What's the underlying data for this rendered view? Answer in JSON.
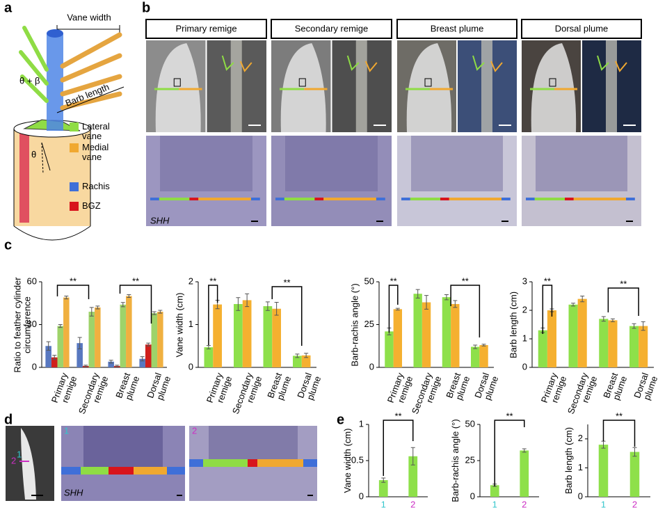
{
  "panel_labels": [
    "a",
    "b",
    "c",
    "d",
    "e"
  ],
  "schematic": {
    "vane_width": "Vane width",
    "angle_sum": "θ + β",
    "barb_length": "Barb length",
    "angle": "θ",
    "legend": [
      {
        "name": "Lateral vane",
        "color": "#8fdc45"
      },
      {
        "name": "Medial vane",
        "color": "#f0a830"
      },
      {
        "name": "Rachis",
        "color": "#3f6fd8"
      },
      {
        "name": "BGZ",
        "color": "#d8141c"
      }
    ]
  },
  "photos": {
    "headers": [
      "Primary remige",
      "Secondary remige",
      "Breast plume",
      "Dorsal plume"
    ],
    "stain_label": "SHH",
    "section_labels": [
      "1",
      "2"
    ]
  },
  "chart_data": [
    {
      "type": "bar",
      "ylabel": "Ratio to feather cylinder circumference",
      "categories": [
        "Primary remige",
        "Secondary remige",
        "Breast plume",
        "Dorsal plume"
      ],
      "ylim": [
        0,
        60
      ],
      "yticks": [
        0,
        30,
        60
      ],
      "series": [
        {
          "color": "#5878c0",
          "values": [
            15,
            17,
            4,
            6
          ],
          "errors": [
            3,
            4,
            1,
            1.5
          ]
        },
        {
          "color": "#d0201c",
          "values": [
            7,
            1,
            1,
            16
          ],
          "errors": [
            1.5,
            0.5,
            0.5,
            1
          ]
        },
        {
          "color": "#9ed36a",
          "values": [
            29,
            39,
            44,
            38
          ],
          "errors": [
            1,
            3,
            1.5,
            1
          ]
        },
        {
          "color": "#f0b040",
          "values": [
            49,
            42,
            50,
            39
          ],
          "errors": [
            1,
            1,
            1,
            1
          ]
        }
      ],
      "annotations": [
        "**",
        "**"
      ]
    },
    {
      "type": "bar",
      "ylabel": "Vane width (cm)",
      "categories": [
        "Primary remige",
        "Secondary remige",
        "Breast plume",
        "Dorsal plume"
      ],
      "ylim": [
        0,
        2
      ],
      "yticks": [
        0,
        1,
        2
      ],
      "series": [
        {
          "color": "#8ee04a",
          "values": [
            0.47,
            1.48,
            1.43,
            0.27
          ],
          "errors": [
            0.04,
            0.15,
            0.1,
            0.04
          ]
        },
        {
          "color": "#f5b030",
          "values": [
            1.47,
            1.57,
            1.37,
            0.28
          ],
          "errors": [
            0.1,
            0.15,
            0.15,
            0.05
          ]
        }
      ],
      "annotations": [
        "**",
        "**"
      ]
    },
    {
      "type": "bar",
      "ylabel": "Barb-rachis angle (°)",
      "categories": [
        "Primary remige",
        "Secondary remige",
        "Breast plume",
        "Dorsal plume"
      ],
      "ylim": [
        0,
        50
      ],
      "yticks": [
        0,
        25,
        50
      ],
      "series": [
        {
          "color": "#8ee04a",
          "values": [
            21,
            43,
            41,
            12
          ],
          "errors": [
            2,
            2.5,
            1.5,
            1
          ]
        },
        {
          "color": "#f5b030",
          "values": [
            34,
            38,
            37,
            13
          ],
          "errors": [
            0.5,
            4,
            2,
            0.5
          ]
        }
      ],
      "annotations": [
        "**",
        "**"
      ]
    },
    {
      "type": "bar",
      "ylabel": "Barb length (cm)",
      "categories": [
        "Primary remige",
        "Secondary remige",
        "Breast plume",
        "Dorsal plume"
      ],
      "ylim": [
        0,
        3
      ],
      "yticks": [
        0,
        1,
        2,
        3
      ],
      "series": [
        {
          "color": "#8ee04a",
          "values": [
            1.3,
            2.2,
            1.7,
            1.45
          ],
          "errors": [
            0.08,
            0.05,
            0.08,
            0.08
          ]
        },
        {
          "color": "#f5b030",
          "values": [
            2.0,
            2.4,
            1.65,
            1.45
          ],
          "errors": [
            0.05,
            0.1,
            0.05,
            0.15
          ]
        }
      ],
      "annotations": [
        "**",
        "**"
      ]
    },
    {
      "type": "bar",
      "ylabel": "Vane width (cm)",
      "categories": [
        "1",
        "2"
      ],
      "category_colors": [
        "#33c6cc",
        "#cc2fc4"
      ],
      "ylim": [
        0,
        1
      ],
      "yticks": [
        0,
        0.5,
        1
      ],
      "series": [
        {
          "color": "#8ee04a",
          "values": [
            0.23,
            0.56
          ],
          "errors": [
            0.03,
            0.12
          ]
        }
      ],
      "annotations": [
        "**"
      ]
    },
    {
      "type": "bar",
      "ylabel": "Barb-rachis angle (°)",
      "categories": [
        "1",
        "2"
      ],
      "category_colors": [
        "#33c6cc",
        "#cc2fc4"
      ],
      "ylim": [
        0,
        50
      ],
      "yticks": [
        0,
        25,
        50
      ],
      "series": [
        {
          "color": "#8ee04a",
          "values": [
            8,
            32
          ],
          "errors": [
            0.8,
            1.2
          ]
        }
      ],
      "annotations": [
        "**"
      ]
    },
    {
      "type": "bar",
      "ylabel": "Barb length (cm)",
      "categories": [
        "1",
        "2"
      ],
      "category_colors": [
        "#33c6cc",
        "#cc2fc4"
      ],
      "ylim": [
        0,
        2.5
      ],
      "yticks": [
        0,
        1,
        2
      ],
      "series": [
        {
          "color": "#8ee04a",
          "values": [
            1.8,
            1.55
          ],
          "errors": [
            0.12,
            0.15
          ]
        }
      ],
      "annotations": [
        "**"
      ]
    }
  ]
}
